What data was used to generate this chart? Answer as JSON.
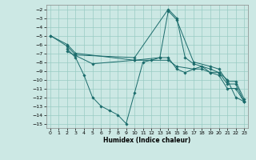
{
  "xlabel": "Humidex (Indice chaleur)",
  "bg_color": "#cce8e4",
  "grid_color": "#99ccc4",
  "line_color": "#1a6b6b",
  "xlim": [
    -0.5,
    23.5
  ],
  "ylim": [
    -15.5,
    -1.5
  ],
  "yticks": [
    -15,
    -14,
    -13,
    -12,
    -11,
    -10,
    -9,
    -8,
    -7,
    -6,
    -5,
    -4,
    -3,
    -2
  ],
  "xticks": [
    0,
    1,
    2,
    3,
    4,
    5,
    6,
    7,
    8,
    9,
    10,
    11,
    12,
    13,
    14,
    15,
    16,
    17,
    18,
    19,
    20,
    21,
    22,
    23
  ],
  "lines": [
    {
      "x": [
        0,
        2,
        3,
        10,
        13,
        14,
        15,
        17,
        19,
        20,
        21,
        22,
        23
      ],
      "y": [
        -5,
        -6,
        -7,
        -7.8,
        -7.5,
        -2.2,
        -3.2,
        -8,
        -8.5,
        -8.8,
        -10.2,
        -10.2,
        -12.2
      ]
    },
    {
      "x": [
        0,
        2,
        3,
        10,
        14,
        15,
        16,
        17,
        19,
        20,
        21,
        22,
        23
      ],
      "y": [
        -5,
        -6.2,
        -7.2,
        -7.5,
        -2,
        -3,
        -7.5,
        -8.2,
        -8.8,
        -9.2,
        -10.5,
        -10.5,
        -12.5
      ]
    },
    {
      "x": [
        2,
        3,
        4,
        5,
        6,
        7,
        8,
        9,
        10,
        11,
        12,
        13,
        14,
        15,
        16,
        17,
        18,
        19,
        20,
        21,
        22,
        23
      ],
      "y": [
        -6.5,
        -7.5,
        -9.5,
        -12,
        -13,
        -13.5,
        -14,
        -15,
        -11.5,
        -8,
        -7.8,
        -7.5,
        -7.5,
        -8.8,
        -9.2,
        -8.8,
        -8.5,
        -9.2,
        -9.2,
        -10,
        -12,
        -12.5
      ]
    },
    {
      "x": [
        2,
        5,
        10,
        14,
        15,
        17,
        18,
        19,
        20,
        21,
        22,
        23
      ],
      "y": [
        -6.8,
        -8.2,
        -7.8,
        -7.8,
        -8.5,
        -8.8,
        -8.8,
        -9.2,
        -9.5,
        -11,
        -11,
        -12.5
      ]
    }
  ]
}
